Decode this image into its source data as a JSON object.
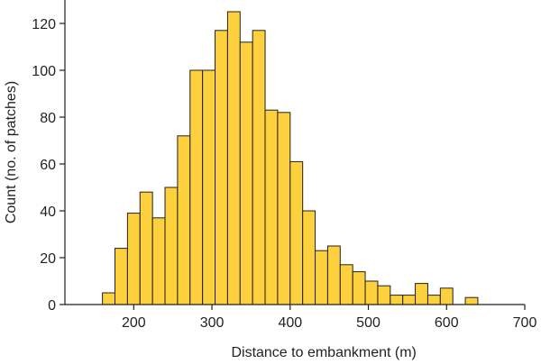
{
  "chart_data": {
    "type": "bar",
    "xlabel": "Distance to embankment (m)",
    "ylabel": "Count (no. of patches)",
    "xlim": [
      112,
      700
    ],
    "ylim": [
      0,
      130
    ],
    "x_ticks": [
      200,
      300,
      400,
      500,
      600,
      700
    ],
    "y_ticks": [
      0,
      20,
      40,
      60,
      80,
      100,
      120
    ],
    "bin_width": 16,
    "bin_start": 160,
    "values": [
      5,
      24,
      39,
      48,
      37,
      50,
      72,
      100,
      100,
      117,
      125,
      112,
      117,
      83,
      82,
      61,
      40,
      23,
      25,
      17,
      14,
      10,
      8,
      4,
      4,
      9,
      4,
      7,
      0,
      3
    ],
    "bar_color": "#fdd13e",
    "edge_color": "#231f20",
    "grid": false,
    "legend": "none"
  }
}
